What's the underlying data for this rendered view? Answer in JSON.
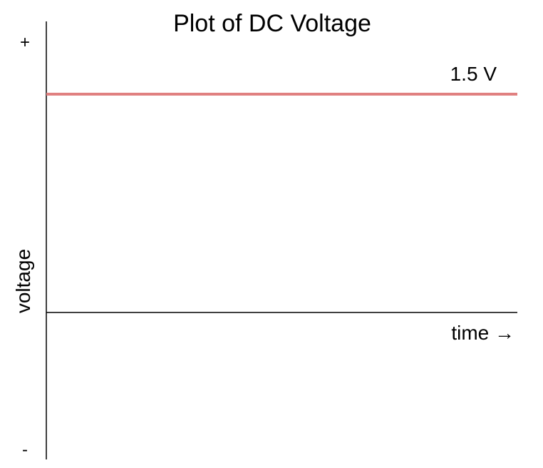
{
  "chart_data": {
    "type": "line",
    "title": "Plot of DC Voltage",
    "xlabel": "time →",
    "ylabel": "voltage",
    "y_positive_marker": "+",
    "y_negative_marker": "-",
    "series": [
      {
        "label": "1.5 V",
        "value": 1.5,
        "color": "#e08080"
      }
    ],
    "ylim": [
      -1.0,
      2.0
    ],
    "grid": false,
    "legend": "none"
  }
}
